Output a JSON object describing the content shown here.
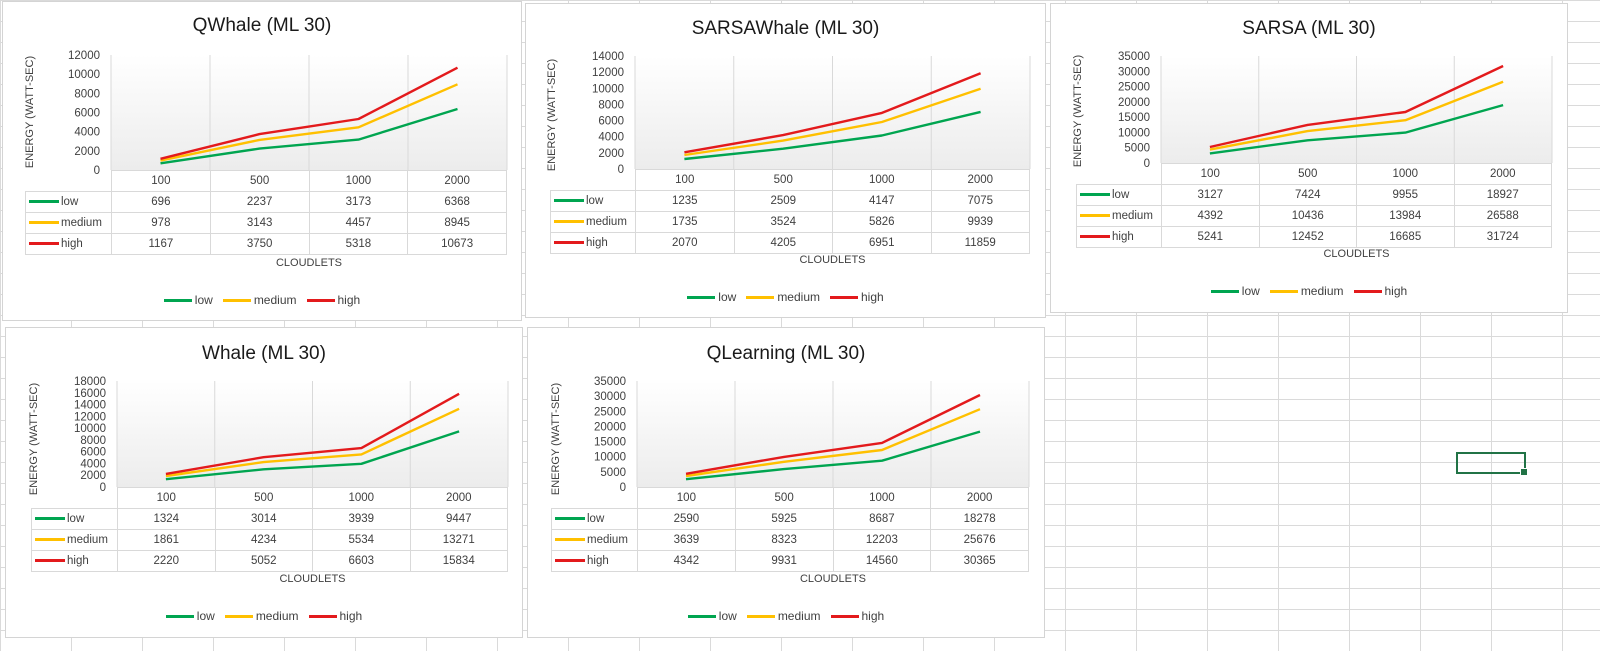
{
  "colors": {
    "low": "#00a550",
    "medium": "#ffc000",
    "high": "#e31a1c"
  },
  "chart_data": [
    {
      "type": "line",
      "title": "QWhale (ML 30)",
      "xlabel": "CLOUDLETS",
      "ylabel": "ENERGY (WATT-SEC)",
      "categories": [
        "100",
        "500",
        "1000",
        "2000"
      ],
      "yticks": [
        "0",
        "2000",
        "4000",
        "6000",
        "8000",
        "10000",
        "12000"
      ],
      "ylim": [
        0,
        12000
      ],
      "legend": "bottom",
      "data_table": true,
      "series": [
        {
          "name": "low",
          "values": [
            696,
            2237,
            3173,
            6368
          ]
        },
        {
          "name": "medium",
          "values": [
            978,
            3143,
            4457,
            8945
          ]
        },
        {
          "name": "high",
          "values": [
            1167,
            3750,
            5318,
            10673
          ]
        }
      ]
    },
    {
      "type": "line",
      "title": "SARSAWhale (ML 30)",
      "xlabel": "CLOUDLETS",
      "ylabel": "ENERGY (WATT-SEC)",
      "categories": [
        "100",
        "500",
        "1000",
        "2000"
      ],
      "yticks": [
        "0",
        "2000",
        "4000",
        "6000",
        "8000",
        "10000",
        "12000",
        "14000"
      ],
      "ylim": [
        0,
        14000
      ],
      "legend": "bottom",
      "data_table": true,
      "series": [
        {
          "name": "low",
          "values": [
            1235,
            2509,
            4147,
            7075
          ]
        },
        {
          "name": "medium",
          "values": [
            1735,
            3524,
            5826,
            9939
          ]
        },
        {
          "name": "high",
          "values": [
            2070,
            4205,
            6951,
            11859
          ]
        }
      ]
    },
    {
      "type": "line",
      "title": "SARSA (ML 30)",
      "xlabel": "CLOUDLETS",
      "ylabel": "ENERGY (WATT-SEC)",
      "categories": [
        "100",
        "500",
        "1000",
        "2000"
      ],
      "yticks": [
        "0",
        "5000",
        "10000",
        "15000",
        "20000",
        "25000",
        "30000",
        "35000"
      ],
      "ylim": [
        0,
        35000
      ],
      "legend": "bottom",
      "data_table": true,
      "series": [
        {
          "name": "low",
          "values": [
            3127,
            7424,
            9955,
            18927
          ]
        },
        {
          "name": "medium",
          "values": [
            4392,
            10436,
            13984,
            26588
          ]
        },
        {
          "name": "high",
          "values": [
            5241,
            12452,
            16685,
            31724
          ]
        }
      ]
    },
    {
      "type": "line",
      "title": "Whale (ML 30)",
      "xlabel": "CLOUDLETS",
      "ylabel": "ENERGY (WATT-SEC)",
      "categories": [
        "100",
        "500",
        "1000",
        "2000"
      ],
      "yticks": [
        "0",
        "2000",
        "4000",
        "6000",
        "8000",
        "10000",
        "12000",
        "14000",
        "16000",
        "18000"
      ],
      "ylim": [
        0,
        18000
      ],
      "legend": "bottom",
      "data_table": true,
      "series": [
        {
          "name": "low",
          "values": [
            1324,
            3014,
            3939,
            9447
          ]
        },
        {
          "name": "medium",
          "values": [
            1861,
            4234,
            5534,
            13271
          ]
        },
        {
          "name": "high",
          "values": [
            2220,
            5052,
            6603,
            15834
          ]
        }
      ]
    },
    {
      "type": "line",
      "title": "QLearning (ML 30)",
      "xlabel": "CLOUDLETS",
      "ylabel": "ENERGY (WATT-SEC)",
      "categories": [
        "100",
        "500",
        "1000",
        "2000"
      ],
      "yticks": [
        "0",
        "5000",
        "10000",
        "15000",
        "20000",
        "25000",
        "30000",
        "35000"
      ],
      "ylim": [
        0,
        35000
      ],
      "legend": "bottom",
      "data_table": true,
      "series": [
        {
          "name": "low",
          "values": [
            2590,
            5925,
            8687,
            18278
          ]
        },
        {
          "name": "medium",
          "values": [
            3639,
            8323,
            12203,
            25676
          ]
        },
        {
          "name": "high",
          "values": [
            4342,
            9931,
            14560,
            30365
          ]
        }
      ]
    }
  ]
}
